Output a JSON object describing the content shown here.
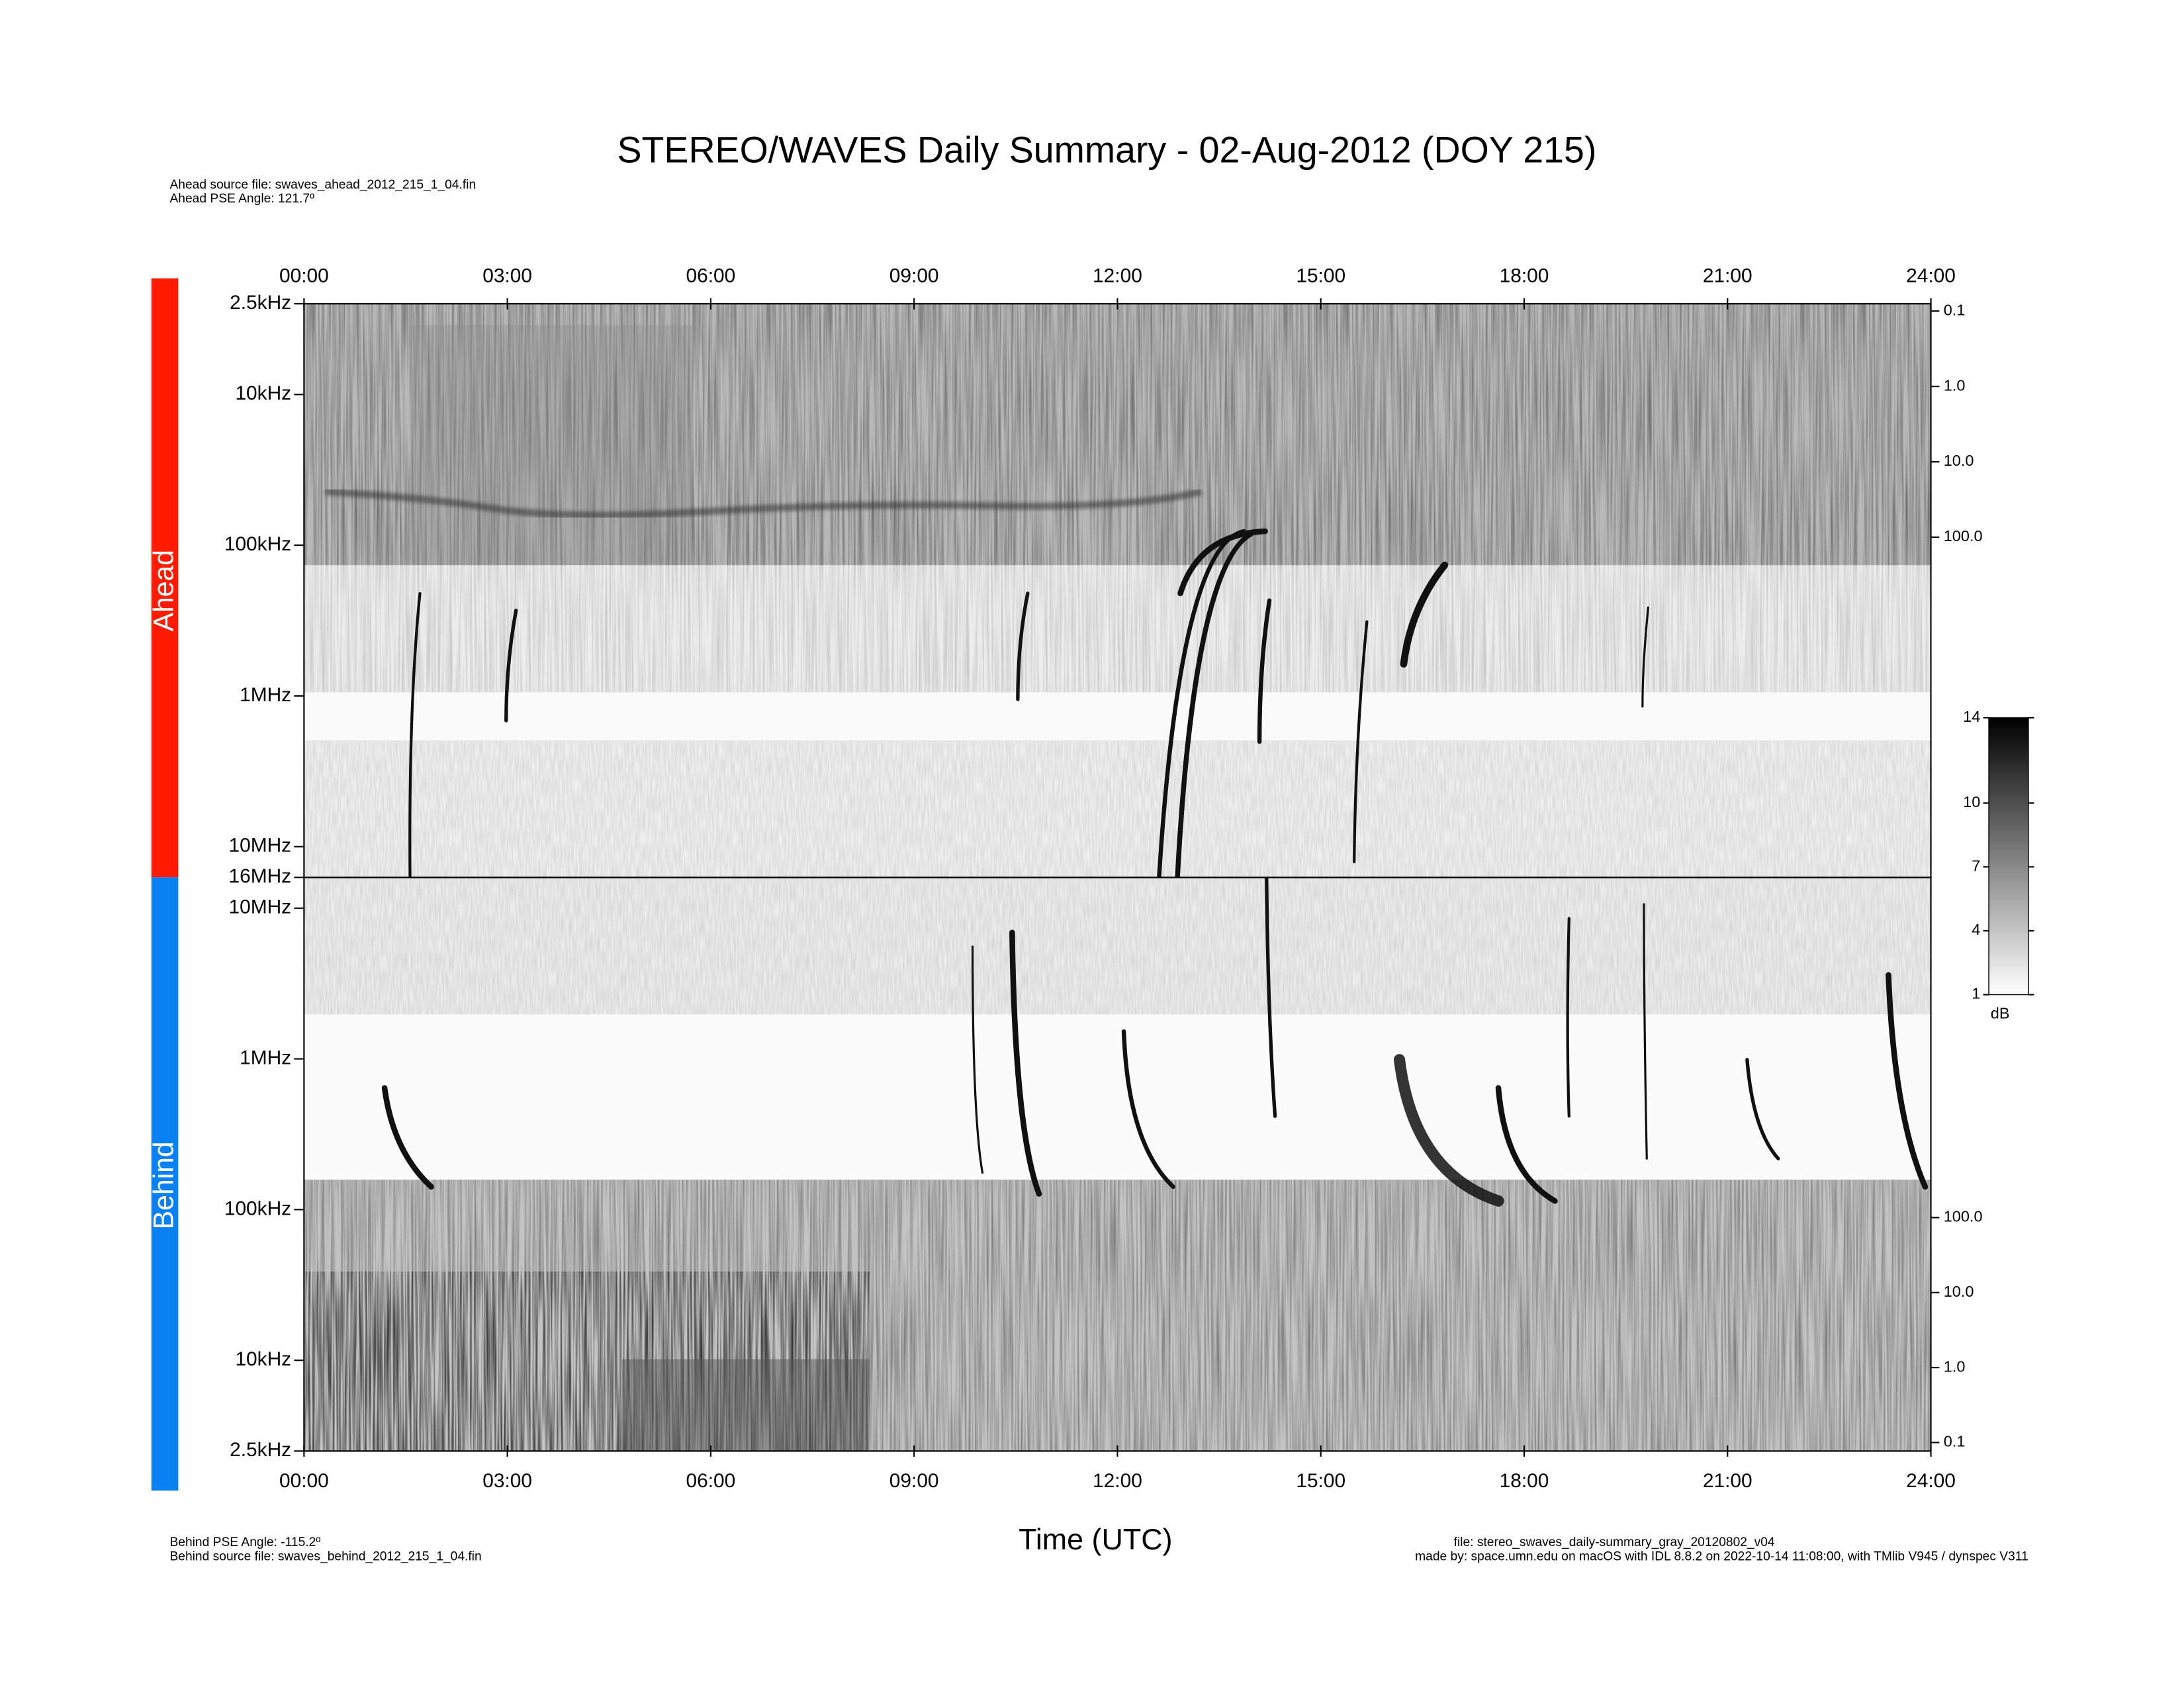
{
  "title": "STEREO/WAVES Daily Summary - 02-Aug-2012 (DOY 215)",
  "ahead_notes": [
    "Ahead source file: swaves_ahead_2012_215_1_04.fin",
    "Ahead PSE Angle:  121.7º"
  ],
  "behind_notes": [
    "Behind PSE Angle: -115.2º",
    "Behind source file: swaves_behind_2012_215_1_04.fin"
  ],
  "file_notes": [
    "file: stereo_swaves_daily-summary_gray_20120802_v04",
    "made by: space.umn.edu on macOS with IDL 8.8.2 on 2022-10-14 11:08:00, with TMlib V945 / dynspec V311"
  ],
  "xlabel": "Time (UTC)",
  "colorbar": {
    "label": "dB",
    "lim": [
      1,
      14
    ],
    "ticks": [
      1,
      4,
      7,
      10,
      14
    ],
    "colors": [
      "#ffffff",
      "#000000"
    ]
  },
  "chart_data": [
    {
      "type": "spectrogram",
      "name": "Ahead",
      "color": "#ff1a00",
      "xlim": [
        0,
        24
      ],
      "xticks": [
        {
          "value": 0,
          "label": "00:00"
        },
        {
          "value": 3,
          "label": "03:00"
        },
        {
          "value": 6,
          "label": "06:00"
        },
        {
          "value": 9,
          "label": "09:00"
        },
        {
          "value": 12,
          "label": "12:00"
        },
        {
          "value": 15,
          "label": "15:00"
        },
        {
          "value": 18,
          "label": "18:00"
        },
        {
          "value": 21,
          "label": "21:00"
        },
        {
          "value": 24,
          "label": "24:00"
        }
      ],
      "ylog": true,
      "ylim": [
        16000000,
        2500
      ],
      "yticks": [
        {
          "value": 2500,
          "label": "2.5kHz"
        },
        {
          "value": 10000,
          "label": "10kHz"
        },
        {
          "value": 100000,
          "label": "100kHz"
        },
        {
          "value": 1000000,
          "label": "1MHz"
        },
        {
          "value": 10000000,
          "label": "10MHz"
        },
        {
          "value": 16000000,
          "label": "16MHz"
        }
      ],
      "y2log": true,
      "y2lim": [
        150,
        0.08
      ],
      "y2ticks": [
        0.1,
        {
          "value": 1,
          "label": "1.0"
        },
        {
          "value": 10,
          "label": "10.0"
        },
        {
          "value": 100,
          "label": "100.0"
        }
      ]
    },
    {
      "type": "spectrogram",
      "name": "Behind",
      "color": "#0a80f5",
      "xlim": [
        0,
        24
      ],
      "xticks": [
        {
          "value": 0,
          "label": "00:00"
        },
        {
          "value": 3,
          "label": "03:00"
        },
        {
          "value": 6,
          "label": "06:00"
        },
        {
          "value": 9,
          "label": "09:00"
        },
        {
          "value": 12,
          "label": "12:00"
        },
        {
          "value": 15,
          "label": "15:00"
        },
        {
          "value": 18,
          "label": "18:00"
        },
        {
          "value": 21,
          "label": "21:00"
        },
        {
          "value": 24,
          "label": "24:00"
        }
      ],
      "ylog": true,
      "ylim": [
        2500,
        16000000
      ],
      "yticks": [
        {
          "value": 10000000,
          "label": "10MHz"
        },
        {
          "value": 1000000,
          "label": "1MHz"
        },
        {
          "value": 100000,
          "label": "100kHz"
        },
        {
          "value": 10000,
          "label": "10kHz"
        },
        {
          "value": 2500,
          "label": "2.5kHz"
        }
      ],
      "y2log": true,
      "y2lim": [
        0.077,
        150
      ],
      "y2ticks": [
        {
          "value": 100,
          "label": "100.0"
        },
        {
          "value": 10,
          "label": "10.0"
        },
        {
          "value": 1,
          "label": "1.0"
        },
        0.1
      ]
    }
  ]
}
